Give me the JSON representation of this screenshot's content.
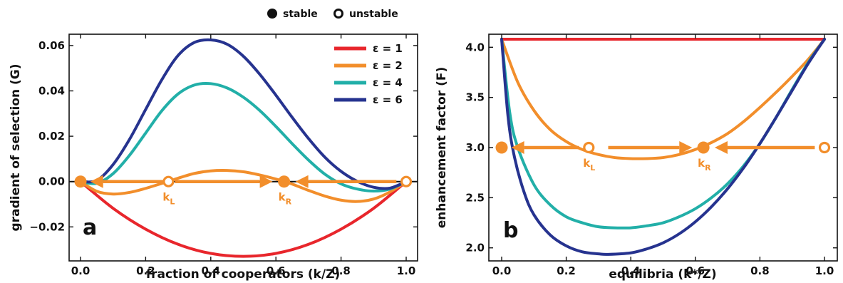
{
  "key": {
    "stable_label": "stable",
    "unstable_label": "unstable"
  },
  "colors": {
    "eps1": "#E8262C",
    "eps2": "#F28E2B",
    "eps4": "#22AFA8",
    "eps6": "#26338F",
    "dynamics": "#F28E2B",
    "axis": "#111111"
  },
  "chart_data": [
    {
      "type": "line",
      "panel_label": "a",
      "xlabel": "fraction of cooperators (k/Z)",
      "ylabel": "gradient of selection (G)",
      "xlim": [
        0,
        1
      ],
      "ylim": [
        -0.035,
        0.065
      ],
      "x_ticks": [
        0.0,
        0.2,
        0.4,
        0.6,
        0.8,
        1.0
      ],
      "x_tick_labels": [
        "0.0",
        "0.2",
        "0.4",
        "0.6",
        "0.8",
        "1.0"
      ],
      "y_ticks": [
        -0.02,
        0.0,
        0.02,
        0.04,
        0.06
      ],
      "y_tick_labels": [
        "−0.02",
        "0.00",
        "0.02",
        "0.04",
        "0.06"
      ],
      "legend_position": "top-right",
      "series": [
        {
          "name": "ε = 1",
          "color": "#E8262C",
          "x": [
            0,
            0.1,
            0.2,
            0.3,
            0.4,
            0.5,
            0.6,
            0.7,
            0.8,
            0.9,
            1.0
          ],
          "y": [
            0,
            -0.0118,
            -0.021,
            -0.0277,
            -0.0317,
            -0.033,
            -0.0317,
            -0.0277,
            -0.021,
            -0.0118,
            0
          ]
        },
        {
          "name": "ε = 2",
          "color": "#F28E2B",
          "x": [
            0,
            0.05,
            0.1,
            0.15,
            0.2,
            0.25,
            0.27,
            0.3,
            0.35,
            0.4,
            0.45,
            0.5,
            0.55,
            0.6,
            0.625,
            0.65,
            0.7,
            0.75,
            0.8,
            0.85,
            0.9,
            0.95,
            1.0
          ],
          "y": [
            0,
            -0.0043,
            -0.0055,
            -0.0048,
            -0.003,
            -0.0008,
            0.0,
            0.0015,
            0.0036,
            0.0047,
            0.0049,
            0.0043,
            0.0029,
            0.0011,
            0.0,
            -0.0011,
            -0.0039,
            -0.0064,
            -0.0082,
            -0.0088,
            -0.0077,
            -0.0046,
            0
          ]
        },
        {
          "name": "ε = 4",
          "color": "#22AFA8",
          "x": [
            0,
            0.05,
            0.1,
            0.15,
            0.2,
            0.25,
            0.3,
            0.35,
            0.4,
            0.45,
            0.5,
            0.55,
            0.6,
            0.65,
            0.7,
            0.75,
            0.8,
            0.85,
            0.9,
            0.95,
            1.0
          ],
          "y": [
            0,
            -0.0008,
            0.0035,
            0.0115,
            0.0214,
            0.0313,
            0.0387,
            0.0426,
            0.0432,
            0.0413,
            0.0372,
            0.0314,
            0.0243,
            0.0167,
            0.0095,
            0.0033,
            -0.001,
            -0.0033,
            -0.0042,
            -0.0033,
            0
          ]
        },
        {
          "name": "ε = 6",
          "color": "#26338F",
          "x": [
            0,
            0.05,
            0.1,
            0.15,
            0.2,
            0.25,
            0.3,
            0.35,
            0.4,
            0.45,
            0.5,
            0.55,
            0.6,
            0.65,
            0.7,
            0.75,
            0.8,
            0.85,
            0.9,
            0.95,
            1.0
          ],
          "y": [
            0,
            0.0005,
            0.0075,
            0.0185,
            0.0318,
            0.045,
            0.0557,
            0.0614,
            0.0625,
            0.0606,
            0.0553,
            0.0474,
            0.0381,
            0.0283,
            0.019,
            0.0108,
            0.0045,
            0.0001,
            -0.0025,
            -0.0029,
            0
          ]
        }
      ],
      "equilibria": [
        {
          "x": 0.0,
          "y": 0.0,
          "stable": true,
          "label": ""
        },
        {
          "x": 0.27,
          "y": 0.0,
          "stable": false,
          "label": "k",
          "sub": "L"
        },
        {
          "x": 0.625,
          "y": 0.0,
          "stable": true,
          "label": "k",
          "sub": "R"
        },
        {
          "x": 1.0,
          "y": 0.0,
          "stable": false,
          "label": ""
        }
      ],
      "arrows": [
        {
          "from": 0.27,
          "to": 0.03
        },
        {
          "from": 0.29,
          "to": 0.59
        },
        {
          "from": 0.97,
          "to": 0.66
        }
      ]
    },
    {
      "type": "line",
      "panel_label": "b",
      "xlabel": "equilibria (k*/Z)",
      "ylabel": "enhancement factor (F)",
      "xlim": [
        0,
        1
      ],
      "ylim": [
        1.87,
        4.13
      ],
      "x_ticks": [
        0.0,
        0.2,
        0.4,
        0.6,
        0.8,
        1.0
      ],
      "x_tick_labels": [
        "0.0",
        "0.2",
        "0.4",
        "0.6",
        "0.8",
        "1.0"
      ],
      "y_ticks": [
        2.0,
        2.5,
        3.0,
        3.5,
        4.0
      ],
      "y_tick_labels": [
        "2.0",
        "2.5",
        "3.0",
        "3.5",
        "4.0"
      ],
      "series": [
        {
          "name": "ε = 1",
          "color": "#E8262C",
          "x": [
            0,
            1.0
          ],
          "y": [
            4.08,
            4.08
          ]
        },
        {
          "name": "ε = 2",
          "color": "#F28E2B",
          "x": [
            0,
            0.05,
            0.1,
            0.15,
            0.2,
            0.25,
            0.3,
            0.35,
            0.4,
            0.45,
            0.5,
            0.55,
            0.6,
            0.65,
            0.7,
            0.75,
            0.8,
            0.85,
            0.9,
            0.95,
            1.0
          ],
          "y": [
            4.08,
            3.65,
            3.37,
            3.18,
            3.06,
            2.98,
            2.93,
            2.9,
            2.89,
            2.89,
            2.9,
            2.93,
            2.98,
            3.05,
            3.14,
            3.26,
            3.4,
            3.55,
            3.71,
            3.88,
            4.08
          ]
        },
        {
          "name": "ε = 4",
          "color": "#22AFA8",
          "x": [
            0,
            0.025,
            0.05,
            0.1,
            0.15,
            0.2,
            0.25,
            0.3,
            0.35,
            0.4,
            0.45,
            0.5,
            0.55,
            0.6,
            0.65,
            0.7,
            0.75,
            0.8,
            0.85,
            0.9,
            0.95,
            1.0
          ],
          "y": [
            4.08,
            3.35,
            3.0,
            2.63,
            2.43,
            2.31,
            2.25,
            2.21,
            2.2,
            2.2,
            2.22,
            2.25,
            2.31,
            2.39,
            2.5,
            2.64,
            2.82,
            3.04,
            3.3,
            3.58,
            3.85,
            4.08
          ]
        },
        {
          "name": "ε = 6",
          "color": "#26338F",
          "x": [
            0,
            0.02,
            0.04,
            0.07,
            0.1,
            0.15,
            0.2,
            0.25,
            0.3,
            0.33,
            0.4,
            0.45,
            0.5,
            0.55,
            0.6,
            0.65,
            0.7,
            0.75,
            0.8,
            0.85,
            0.9,
            0.95,
            1.0
          ],
          "y": [
            4.08,
            3.3,
            2.9,
            2.55,
            2.33,
            2.13,
            2.02,
            1.96,
            1.94,
            1.935,
            1.95,
            1.99,
            2.05,
            2.14,
            2.26,
            2.41,
            2.59,
            2.8,
            3.04,
            3.3,
            3.57,
            3.84,
            4.08
          ]
        }
      ],
      "equilibria": [
        {
          "x": 0.0,
          "y": 3.0,
          "stable": true,
          "label": ""
        },
        {
          "x": 0.27,
          "y": 3.0,
          "stable": false,
          "label": "k",
          "sub": "L"
        },
        {
          "x": 0.625,
          "y": 3.0,
          "stable": true,
          "label": "k",
          "sub": "R"
        },
        {
          "x": 1.0,
          "y": 3.0,
          "stable": false,
          "label": ""
        }
      ],
      "arrows": [
        {
          "from": 0.24,
          "to": 0.03
        },
        {
          "from": 0.33,
          "to": 0.59
        },
        {
          "from": 0.97,
          "to": 0.66
        }
      ]
    }
  ]
}
